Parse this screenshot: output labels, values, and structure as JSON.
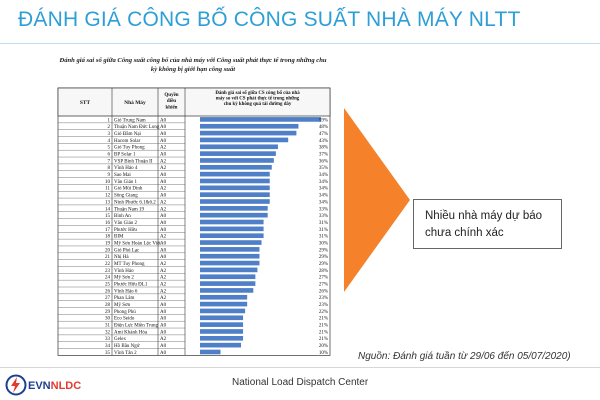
{
  "slide": {
    "title": "ĐÁNH GIÁ CÔNG BỐ CÔNG SUẤT NHÀ MÁY NLTT",
    "callout": "Nhiều nhà máy dự báo chưa chính xác",
    "source": "Nguồn: Đánh giá tuần từ 29/06 đến 05/07/2020)"
  },
  "table": {
    "caption": "Đánh giá sai số giữa Công suất công bố của nhà máy với Công suất phát thực tế trong những chu kỳ không bị giới hạn công suất",
    "headers": {
      "stt": "STT",
      "plant": "Nhà Máy",
      "rights": "Quyền điều khiển",
      "error": "Đánh giá sai số giữa CS công bố của nhà máy so với CS phát thực tế trong những chu kỳ không quá tải đường dây"
    },
    "rows": [
      {
        "stt": "1",
        "name": "Gió Trung Nam",
        "rights": "A0",
        "pct": "59%"
      },
      {
        "stt": "2",
        "name": "Thuận Nam Đức Long",
        "rights": "A0",
        "pct": "48%"
      },
      {
        "stt": "3",
        "name": "Gió Đầm Nại",
        "rights": "A0",
        "pct": "47%"
      },
      {
        "stt": "4",
        "name": "Hacom Solar",
        "rights": "A0",
        "pct": "43%"
      },
      {
        "stt": "5",
        "name": "Gió Tuy Phong",
        "rights": "A2",
        "pct": "38%"
      },
      {
        "stt": "6",
        "name": "BP Solar 1",
        "rights": "A0",
        "pct": "37%"
      },
      {
        "stt": "7",
        "name": "VSP Bình Thuận II",
        "rights": "A2",
        "pct": "36%"
      },
      {
        "stt": "8",
        "name": "Vĩnh Hảo 4",
        "rights": "A2",
        "pct": "35%"
      },
      {
        "stt": "9",
        "name": "Sao Mai",
        "rights": "A0",
        "pct": "34%"
      },
      {
        "stt": "10",
        "name": "Văn Giáo 1",
        "rights": "A0",
        "pct": "34%"
      },
      {
        "stt": "11",
        "name": "Gió Mũi Dinh",
        "rights": "A2",
        "pct": "34%"
      },
      {
        "stt": "12",
        "name": "Sông Giang",
        "rights": "A0",
        "pct": "34%"
      },
      {
        "stt": "13",
        "name": "Ninh Phước 6.1&6.2",
        "rights": "A2",
        "pct": "34%"
      },
      {
        "stt": "14",
        "name": "Thuận Nam 19",
        "rights": "A2",
        "pct": "33%"
      },
      {
        "stt": "15",
        "name": "Bình An",
        "rights": "A0",
        "pct": "33%"
      },
      {
        "stt": "16",
        "name": "Văn Giáo 2",
        "rights": "A0",
        "pct": "31%"
      },
      {
        "stt": "17",
        "name": "Phước Hữu",
        "rights": "A0",
        "pct": "31%"
      },
      {
        "stt": "18",
        "name": "BIM",
        "rights": "A2",
        "pct": "31%"
      },
      {
        "stt": "19",
        "name": "Mỹ Sơn Hoàn Lộc Việt",
        "rights": "A0",
        "pct": "30%"
      },
      {
        "stt": "20",
        "name": "Gió Phú Lạc",
        "rights": "A0",
        "pct": "29%"
      },
      {
        "stt": "21",
        "name": "Nhị Hà",
        "rights": "A0",
        "pct": "29%"
      },
      {
        "stt": "22",
        "name": "MT Tuy Phong",
        "rights": "A2",
        "pct": "29%"
      },
      {
        "stt": "23",
        "name": "Vĩnh Hảo",
        "rights": "A2",
        "pct": "28%"
      },
      {
        "stt": "24",
        "name": "Mỹ Sơn 2",
        "rights": "A2",
        "pct": "27%"
      },
      {
        "stt": "25",
        "name": "Phước Hữu ĐL1",
        "rights": "A2",
        "pct": "27%"
      },
      {
        "stt": "26",
        "name": "Vĩnh Hảo 6",
        "rights": "A2",
        "pct": "26%"
      },
      {
        "stt": "27",
        "name": "Phan Lâm",
        "rights": "A2",
        "pct": "23%"
      },
      {
        "stt": "28",
        "name": "Mỹ Sơn",
        "rights": "A0",
        "pct": "23%"
      },
      {
        "stt": "29",
        "name": "Phong Phú",
        "rights": "A0",
        "pct": "22%"
      },
      {
        "stt": "30",
        "name": "Eco Seido",
        "rights": "A0",
        "pct": "21%"
      },
      {
        "stt": "31",
        "name": "Điện Lực Miền Trung",
        "rights": "A0",
        "pct": "21%"
      },
      {
        "stt": "32",
        "name": "Ami Khánh Hòa",
        "rights": "A0",
        "pct": "21%"
      },
      {
        "stt": "33",
        "name": "Gelex",
        "rights": "A2",
        "pct": "21%"
      },
      {
        "stt": "34",
        "name": "Hồ Bầu Ngứ",
        "rights": "A0",
        "pct": "20%"
      },
      {
        "stt": "35",
        "name": "Vĩnh Tân 2",
        "rights": "A0",
        "pct": "10%"
      }
    ]
  },
  "chart_data": {
    "type": "bar",
    "categories": [
      "Gió Trung Nam",
      "Thuận Nam Đức Long",
      "Gió Đầm Nại",
      "Hacom Solar",
      "Gió Tuy Phong",
      "BP Solar 1",
      "VSP Bình Thuận II",
      "Vĩnh Hảo 4",
      "Sao Mai",
      "Văn Giáo 1",
      "Gió Mũi Dinh",
      "Sông Giang",
      "Ninh Phước 6.1&6.2",
      "Thuận Nam 19",
      "Bình An",
      "Văn Giáo 2",
      "Phước Hữu",
      "BIM",
      "Mỹ Sơn Hoàn Lộc Việt",
      "Gió Phú Lạc",
      "Nhị Hà",
      "MT Tuy Phong",
      "Vĩnh Hảo",
      "Mỹ Sơn 2",
      "Phước Hữu ĐL1",
      "Vĩnh Hảo 6",
      "Phan Lâm",
      "Mỹ Sơn",
      "Phong Phú",
      "Eco Seido",
      "Điện Lực Miền Trung",
      "Ami Khánh Hòa",
      "Gelex",
      "Hồ Bầu Ngứ",
      "Vĩnh Tân 2"
    ],
    "values": [
      59,
      48,
      47,
      43,
      38,
      37,
      36,
      35,
      34,
      34,
      34,
      34,
      34,
      33,
      33,
      31,
      31,
      31,
      30,
      29,
      29,
      29,
      28,
      27,
      27,
      26,
      23,
      23,
      22,
      21,
      21,
      21,
      21,
      20,
      10
    ],
    "orientation": "horizontal",
    "xlim": [
      0,
      59
    ],
    "bar_color": "#4f7fc7"
  },
  "footer": {
    "brand_main": "EVN",
    "brand_accent": "NLDC",
    "org": "National Load Dispatch Center"
  },
  "colors": {
    "title": "#2e9fd6",
    "arrow": "#f5822a",
    "bar": "#4f7fc7",
    "brand_blue": "#1d3f91",
    "brand_red": "#e23a2e"
  }
}
